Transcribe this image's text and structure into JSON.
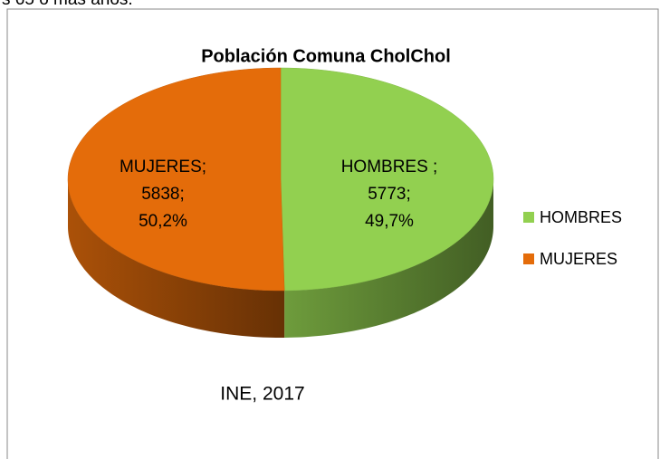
{
  "header_text": "s 65 o más años.",
  "chart_data": {
    "type": "pie3d",
    "title": "Población Comuna CholChol",
    "categories": [
      "HOMBRES",
      "MUJERES"
    ],
    "label_names": [
      "HOMBRES ;",
      "MUJERES;"
    ],
    "values": [
      5773,
      5838
    ],
    "value_labels": [
      "5773;",
      "5838;"
    ],
    "percents": [
      49.7,
      50.2
    ],
    "percent_labels": [
      "49,7%",
      "50,2%"
    ],
    "colors": [
      "#92d050",
      "#e46c0a"
    ],
    "source": "INE,  2017",
    "legend": "right"
  }
}
